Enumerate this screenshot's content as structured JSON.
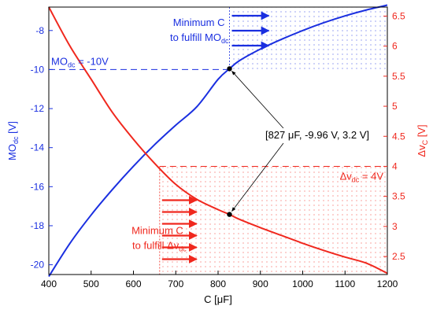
{
  "chart_data": {
    "type": "line",
    "xlabel": "C [μF]",
    "ylabel_left": "MO",
    "ylabel_left_sub": "dc",
    "ylabel_left_unit": " [V]",
    "ylabel_right": "Δv",
    "ylabel_right_sub": "C",
    "ylabel_right_unit": " [V]",
    "xlim": [
      400,
      1200
    ],
    "ylim_left": [
      -20.5,
      -6.8
    ],
    "ylim_right": [
      2.2,
      6.65
    ],
    "x_ticks": [
      400,
      500,
      600,
      700,
      800,
      900,
      1000,
      1100,
      1200
    ],
    "y_left_ticks": [
      -20,
      -18,
      -16,
      -14,
      -12,
      -10,
      -8
    ],
    "y_right_ticks": [
      2.5,
      3,
      3.5,
      4,
      4.5,
      5,
      5.5,
      6,
      6.5
    ],
    "colors": {
      "left": "#1a2fe0",
      "right": "#f0281e",
      "axis": "#000000"
    },
    "series": [
      {
        "axis": "left",
        "color": "#1a2fe0",
        "x": [
          400,
          450,
          500,
          550,
          600,
          650,
          700,
          750,
          800,
          827,
          850,
          900,
          950,
          1000,
          1050,
          1100,
          1150,
          1200
        ],
        "y": [
          -20.6,
          -18.9,
          -17.45,
          -16.15,
          -14.95,
          -13.85,
          -12.85,
          -11.9,
          -10.5,
          -9.96,
          -9.55,
          -8.95,
          -8.45,
          -8.0,
          -7.6,
          -7.25,
          -6.95,
          -6.7
        ]
      },
      {
        "axis": "right",
        "color": "#f0281e",
        "x": [
          400,
          450,
          500,
          550,
          600,
          650,
          700,
          750,
          800,
          827,
          850,
          900,
          950,
          1000,
          1050,
          1100,
          1150,
          1200
        ],
        "y": [
          6.65,
          6.0,
          5.45,
          4.9,
          4.45,
          4.05,
          3.7,
          3.45,
          3.28,
          3.2,
          3.12,
          2.98,
          2.85,
          2.72,
          2.6,
          2.49,
          2.39,
          2.22
        ]
      }
    ],
    "annotations": {
      "mo_threshold_label": "MO",
      "mo_threshold_sub": "dc",
      "mo_threshold_value": " = -10V",
      "mo_threshold": -10,
      "dv_threshold_label": "Δv",
      "dv_threshold_sub": "dc",
      "dv_threshold_value": " = 4V",
      "dv_threshold": 4,
      "point_label": "[827 μF, -9.96 V, 3.2 V]",
      "point_x": 827,
      "point_left_y": -9.96,
      "point_right_y": 3.2,
      "min_c_blue_line1": "Minimum C",
      "min_c_blue_line2": "to fulfill MO",
      "min_c_blue_sub": "dc",
      "min_c_red_line1": "Minimum C",
      "min_c_red_line2": "to fulfill Δv",
      "min_c_red_sub": "dc",
      "red_region_start": 662,
      "blue_region_start": 827
    }
  }
}
